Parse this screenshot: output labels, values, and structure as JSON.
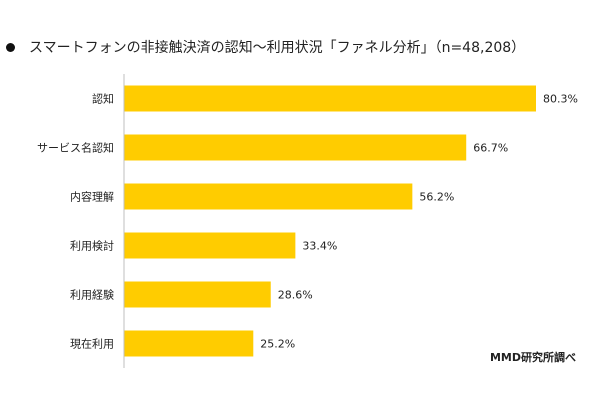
{
  "chart_data": {
    "type": "bar",
    "orientation": "horizontal",
    "title": "スマートフォンの非接触決済の認知～利用状況「ファネル分析」（n=48,208）",
    "categories": [
      "認知",
      "サービス名認知",
      "内容理解",
      "利用検討",
      "利用経験",
      "現在利用"
    ],
    "values": [
      80.3,
      66.7,
      56.2,
      33.4,
      28.6,
      25.2
    ],
    "value_labels": [
      "80.3%",
      "66.7%",
      "56.2%",
      "33.4%",
      "28.6%",
      "25.2%"
    ],
    "xlim": [
      0,
      85
    ],
    "grid": false,
    "legend": "none",
    "bar_color": "#FFCC00",
    "source": "MMD研究所調べ"
  }
}
